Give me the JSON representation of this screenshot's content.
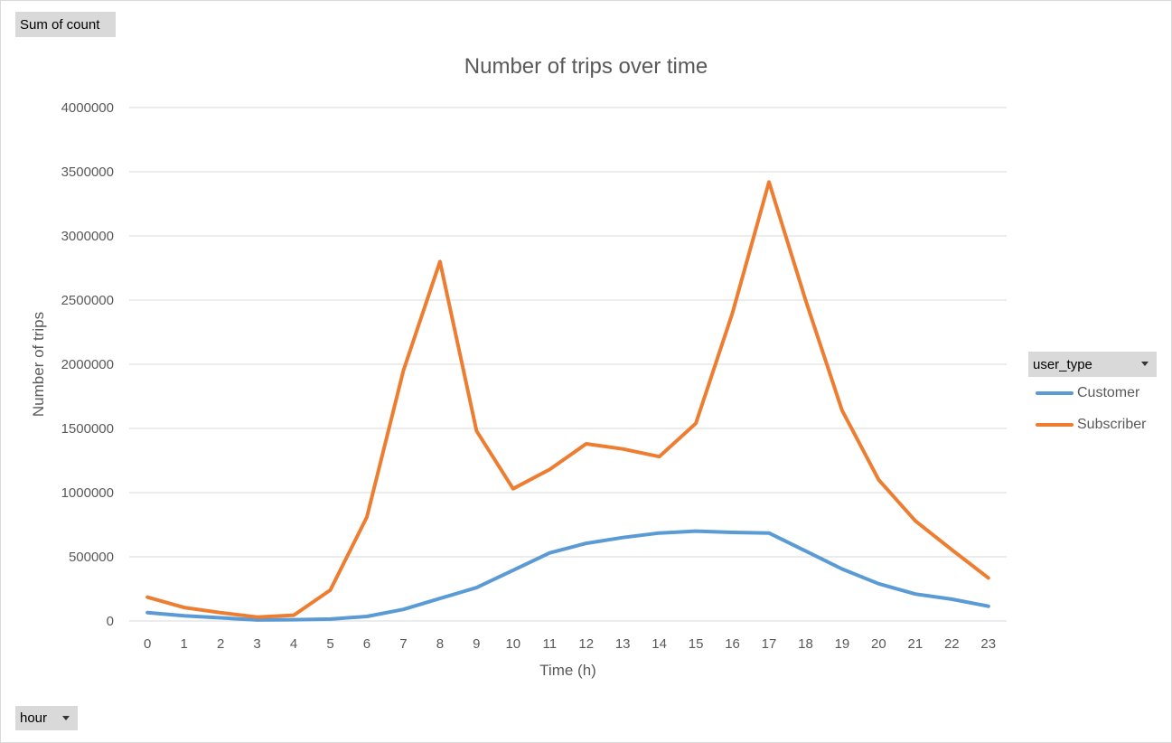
{
  "pivot": {
    "value_field": "Sum of count",
    "axis_field": "hour",
    "legend_field": "user_type"
  },
  "colors": {
    "customer": "#5b9bd5",
    "subscriber": "#ed7d31",
    "grid": "#d9d9d9",
    "text": "#595959"
  },
  "chart_data": {
    "type": "line",
    "title": "Number of trips over time",
    "xlabel": "Time (h)",
    "ylabel": "Number of trips",
    "categories": [
      "0",
      "1",
      "2",
      "3",
      "4",
      "5",
      "6",
      "7",
      "8",
      "9",
      "10",
      "11",
      "12",
      "13",
      "14",
      "15",
      "16",
      "17",
      "18",
      "19",
      "20",
      "21",
      "22",
      "23"
    ],
    "ylim": [
      0,
      4000000
    ],
    "yticks": [
      0,
      500000,
      1000000,
      1500000,
      2000000,
      2500000,
      3000000,
      3500000,
      4000000
    ],
    "ytick_labels": [
      "0",
      "500000",
      "1000000",
      "1500000",
      "2000000",
      "2500000",
      "3000000",
      "3500000",
      "4000000"
    ],
    "grid": true,
    "legend_position": "right",
    "series": [
      {
        "name": "Customer",
        "values": [
          65000,
          40000,
          25000,
          8000,
          10000,
          15000,
          35000,
          90000,
          175000,
          260000,
          395000,
          530000,
          605000,
          650000,
          685000,
          700000,
          690000,
          685000,
          545000,
          405000,
          290000,
          210000,
          170000,
          115000
        ]
      },
      {
        "name": "Subscriber",
        "values": [
          185000,
          105000,
          65000,
          30000,
          45000,
          240000,
          810000,
          1950000,
          2800000,
          1480000,
          1030000,
          1180000,
          1380000,
          1340000,
          1280000,
          1540000,
          2400000,
          3420000,
          2500000,
          1640000,
          1100000,
          780000,
          555000,
          335000
        ]
      }
    ]
  }
}
